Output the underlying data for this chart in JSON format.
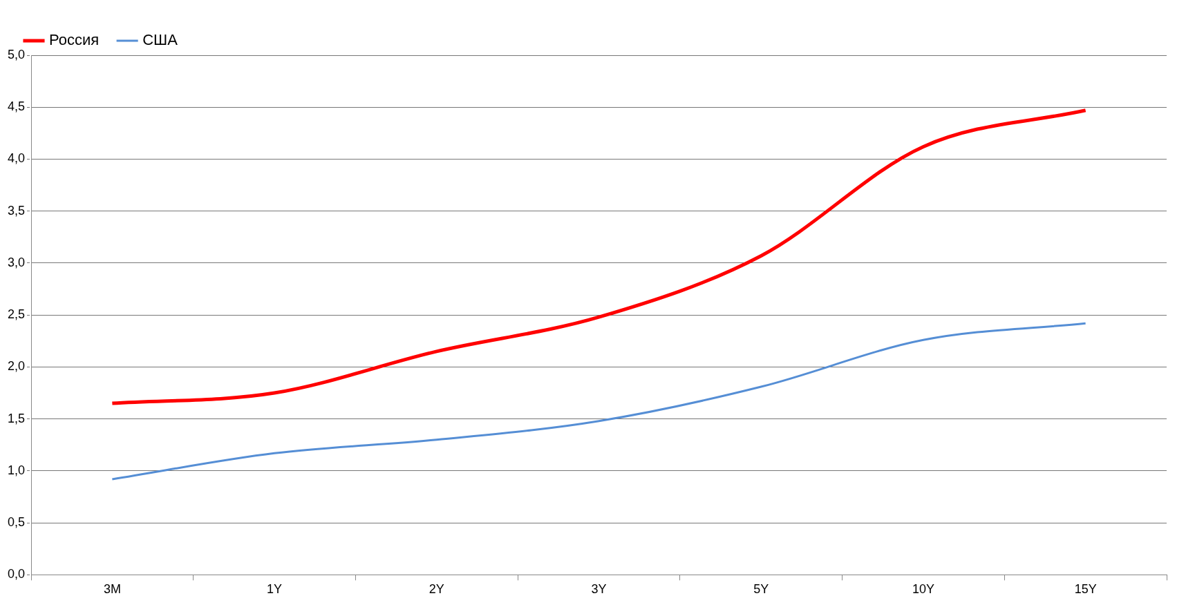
{
  "chart_data": {
    "type": "line",
    "categories": [
      "3M",
      "1Y",
      "2Y",
      "3Y",
      "5Y",
      "10Y",
      "15Y"
    ],
    "series": [
      {
        "name": "Россия",
        "color": "#ff0000",
        "values": [
          1.65,
          1.75,
          2.15,
          2.48,
          3.07,
          4.12,
          4.47
        ]
      },
      {
        "name": "США",
        "color": "#558ed5",
        "values": [
          0.92,
          1.17,
          1.3,
          1.48,
          1.81,
          2.26,
          2.42
        ]
      }
    ],
    "ylim": [
      0,
      5
    ],
    "yticks": [
      {
        "value": 0,
        "label": "0,0"
      },
      {
        "value": 0.5,
        "label": "0,5"
      },
      {
        "value": 1,
        "label": "1,0"
      },
      {
        "value": 1.5,
        "label": "1,5"
      },
      {
        "value": 2,
        "label": "2,0"
      },
      {
        "value": 2.5,
        "label": "2,5"
      },
      {
        "value": 3,
        "label": "3,0"
      },
      {
        "value": 3.5,
        "label": "3,5"
      },
      {
        "value": 4,
        "label": "4,0"
      },
      {
        "value": 4.5,
        "label": "4,5"
      },
      {
        "value": 5,
        "label": "5,0"
      }
    ],
    "grid": "y",
    "legend": "top left",
    "marker": "none",
    "line_style": "solid"
  }
}
